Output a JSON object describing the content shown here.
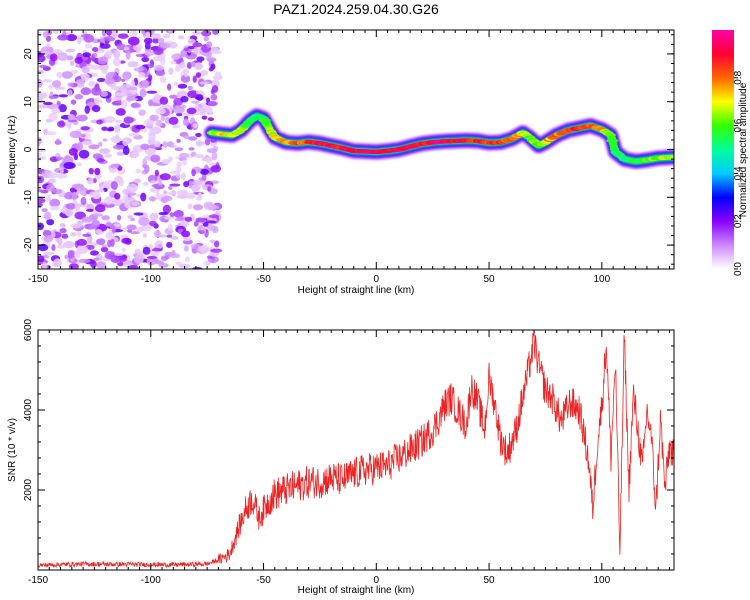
{
  "title": "PAZ1.2024.259.04.30.G26",
  "chart_data": [
    {
      "type": "heatmap",
      "xlabel": "Height of straight line (km)",
      "ylabel": "Frequency (Hz)",
      "xlim": [
        -150,
        132
      ],
      "ylim": [
        -25,
        25
      ],
      "xticks": [
        -150,
        -100,
        -50,
        0,
        50,
        100
      ],
      "yticks": [
        -20,
        -10,
        0,
        10,
        20
      ],
      "colorbar": {
        "label": "Normalized spectral amplitude",
        "range": [
          0,
          1
        ],
        "ticks": [
          0.0,
          0.2,
          0.4,
          0.6,
          0.8
        ],
        "colormap": [
          "#ffffff",
          "#cc88ff",
          "#8800ff",
          "#0000ff",
          "#00ccff",
          "#00ff99",
          "#33ff00",
          "#ffff00",
          "#ff6600",
          "#ff0033",
          "#ff00aa"
        ]
      },
      "noise_region_x": [
        -150,
        -70
      ],
      "ridge": {
        "x": [
          -73,
          -68,
          -64,
          -60,
          -56,
          -53,
          -50,
          -47,
          -45,
          -40,
          -35,
          -30,
          -25,
          -20,
          -15,
          -10,
          -5,
          0,
          5,
          10,
          15,
          20,
          25,
          30,
          35,
          40,
          45,
          50,
          55,
          60,
          65,
          68,
          72,
          75,
          80,
          85,
          90,
          95,
          98,
          100,
          104,
          106,
          110,
          115,
          120,
          125,
          132
        ],
        "freq": [
          3.5,
          3.2,
          3.0,
          4.0,
          6.0,
          7.0,
          6.5,
          4.0,
          2.5,
          1.5,
          1.3,
          1.6,
          1.3,
          0.8,
          0.3,
          -0.3,
          -0.4,
          -0.5,
          -0.3,
          0.0,
          0.6,
          1.2,
          1.5,
          1.7,
          1.8,
          1.9,
          1.8,
          1.4,
          1.5,
          2.2,
          3.5,
          2.5,
          0.8,
          1.5,
          3.0,
          4.0,
          4.5,
          5.0,
          4.5,
          4.2,
          3.0,
          -0.5,
          -2.0,
          -2.5,
          -2.2,
          -1.8,
          -1.6
        ],
        "amp": [
          0.6,
          0.7,
          0.7,
          0.65,
          0.55,
          0.5,
          0.55,
          0.65,
          0.7,
          0.75,
          0.8,
          0.85,
          0.9,
          0.9,
          0.9,
          0.95,
          0.95,
          0.95,
          0.9,
          0.95,
          0.95,
          0.9,
          0.9,
          0.95,
          0.9,
          0.9,
          0.85,
          0.85,
          0.85,
          0.8,
          0.7,
          0.6,
          0.6,
          0.7,
          0.8,
          0.85,
          0.85,
          0.8,
          0.8,
          0.75,
          0.6,
          0.55,
          0.5,
          0.55,
          0.6,
          0.65,
          0.7
        ]
      }
    },
    {
      "type": "line",
      "xlabel": "Height of straight line (km)",
      "ylabel": "SNR (10 * v/v)",
      "xlim": [
        -150,
        132
      ],
      "ylim": [
        0,
        6000
      ],
      "xticks": [
        -150,
        -100,
        -50,
        0,
        50,
        100
      ],
      "yticks": [
        2000,
        4000,
        6000
      ],
      "series": [
        {
          "color": "#ee2222",
          "x": [
            -150,
            -130,
            -110,
            -90,
            -75,
            -70,
            -65,
            -62,
            -58,
            -55,
            -52,
            -48,
            -45,
            -40,
            -35,
            -30,
            -25,
            -20,
            -15,
            -10,
            -5,
            0,
            5,
            10,
            15,
            20,
            25,
            28,
            30,
            33,
            36,
            40,
            42,
            45,
            48,
            50,
            52,
            55,
            58,
            62,
            66,
            70,
            72,
            75,
            78,
            82,
            86,
            90,
            94,
            96,
            98,
            100,
            102,
            104,
            106,
            108,
            110,
            112,
            114,
            116,
            118,
            120,
            122,
            124,
            126,
            128,
            130,
            132
          ],
          "y": [
            120,
            150,
            140,
            130,
            150,
            250,
            400,
            900,
            1500,
            1800,
            1300,
            1700,
            1900,
            2000,
            2100,
            2200,
            2200,
            2300,
            2250,
            2400,
            2500,
            2550,
            2600,
            2800,
            3000,
            3200,
            3500,
            3800,
            4100,
            4300,
            4000,
            3600,
            4600,
            4200,
            3500,
            4800,
            4300,
            3300,
            2900,
            3500,
            4600,
            5700,
            5100,
            4500,
            4300,
            3700,
            4200,
            4000,
            2800,
            1500,
            3200,
            4100,
            5700,
            2800,
            5200,
            400,
            5900,
            2000,
            4400,
            3500,
            2500,
            4000,
            3300,
            1500,
            3800,
            2000,
            3100,
            2800
          ],
          "jitter": 420
        }
      ]
    }
  ]
}
